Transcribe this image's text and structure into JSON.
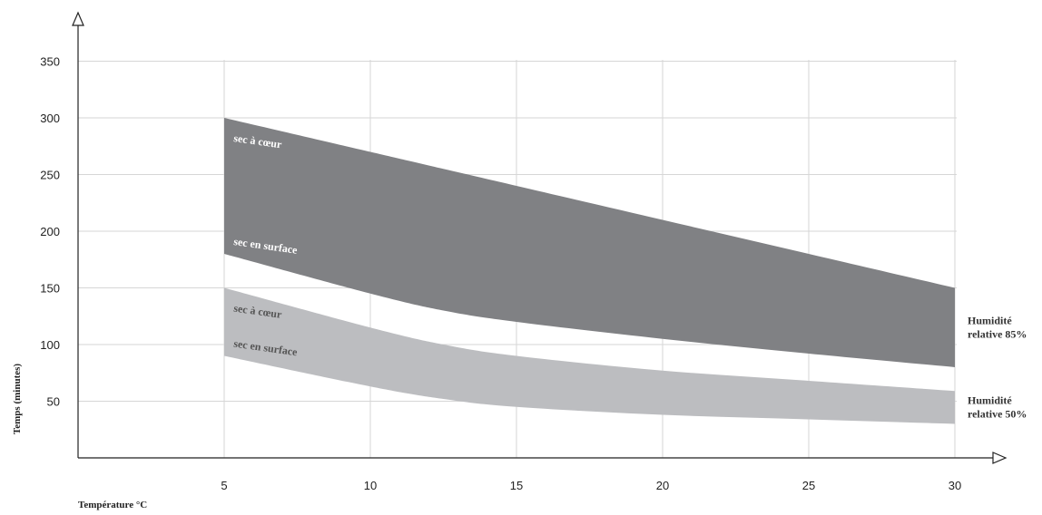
{
  "chart_data": {
    "type": "area",
    "title": "",
    "xlabel": "Température °C",
    "ylabel": "Temps (minutes)",
    "x_ticks": [
      5,
      10,
      15,
      20,
      25,
      30
    ],
    "y_ticks": [
      50,
      100,
      150,
      200,
      250,
      300,
      350
    ],
    "xlim": [
      0,
      30
    ],
    "ylim": [
      0,
      350
    ],
    "grid": true,
    "bands": [
      {
        "name": "Humidité relative 85%",
        "name_lines": [
          "Humidité",
          "relative 85%"
        ],
        "color": "#808184",
        "upper_label": "sec à cœur",
        "lower_label": "sec en surface",
        "label_color": "#ffffff",
        "x": [
          5,
          10,
          12.5,
          15,
          20,
          25,
          30
        ],
        "upper": [
          300,
          270,
          255,
          240,
          210,
          180,
          150
        ],
        "lower": [
          180,
          145,
          130,
          120,
          105,
          92,
          80
        ]
      },
      {
        "name": "Humidité relative 50%",
        "name_lines": [
          "Humidité",
          "relative 50%"
        ],
        "color": "#bcbdc0",
        "upper_label": "sec à cœur",
        "lower_label": "sec en surface",
        "label_color": "#555555",
        "x": [
          5,
          10,
          12.5,
          15,
          20,
          25,
          30
        ],
        "upper": [
          150,
          115,
          100,
          90,
          77,
          68,
          59
        ],
        "lower": [
          90,
          63,
          52,
          45,
          38,
          34,
          30
        ]
      }
    ]
  }
}
